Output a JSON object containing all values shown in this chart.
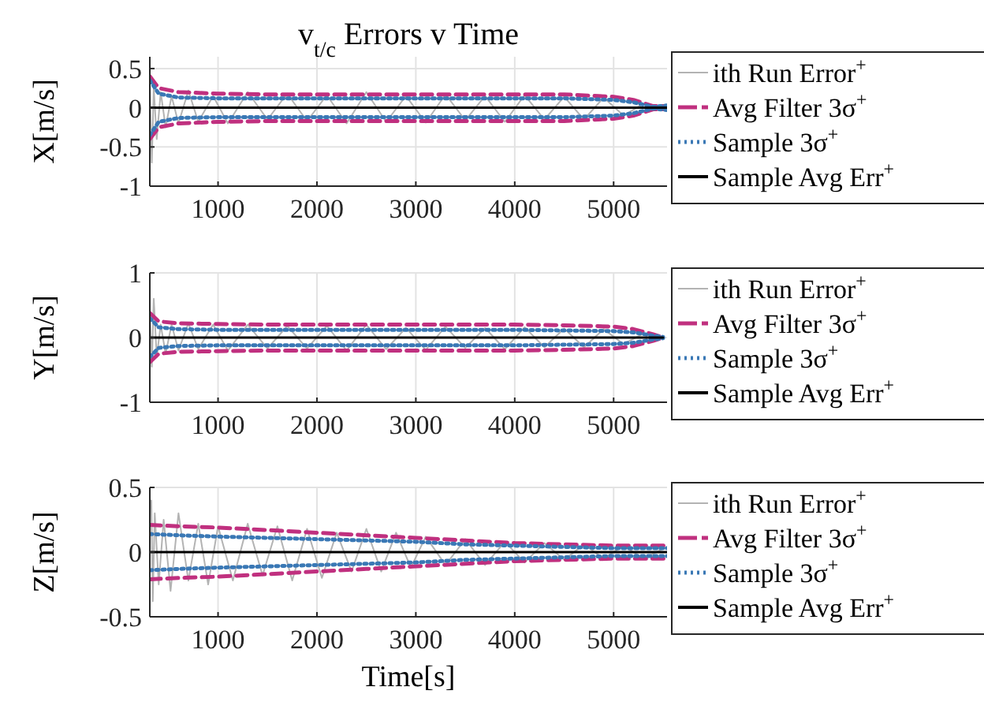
{
  "chart_data": [
    {
      "type": "line",
      "title": "v$_{t/c}$ Errors v Time",
      "ylabel": "X[m/s]",
      "xlim": [
        310,
        5540
      ],
      "ylim": [
        -1,
        0.65
      ],
      "xticks": [
        1000,
        2000,
        3000,
        4000,
        5000
      ],
      "yticks": [
        -1,
        -0.5,
        0,
        0.5
      ],
      "grid": true,
      "legend": "right",
      "x": [
        310,
        400,
        600,
        1000,
        1500,
        2000,
        2500,
        3000,
        3500,
        4000,
        4500,
        5000,
        5200,
        5400,
        5540
      ],
      "series": [
        {
          "name": "ith Run Error$^{+}$",
          "color": "#b3b3b3",
          "line_style": "solid",
          "x": [
            310,
            330,
            350,
            380,
            420,
            470,
            530,
            600,
            700,
            800,
            950,
            1100,
            1300,
            1500,
            1700,
            1900,
            2100,
            2300,
            2500,
            2700,
            2900,
            3100,
            3300,
            3500,
            3700,
            3900,
            4100,
            4300,
            4500,
            4700,
            4900,
            5100,
            5300,
            5450,
            5540
          ],
          "values": [
            0.3,
            -0.7,
            0.25,
            -0.4,
            0.2,
            -0.25,
            0.15,
            -0.2,
            0.22,
            -0.18,
            0.15,
            -0.2,
            0.2,
            -0.15,
            0.18,
            -0.17,
            0.16,
            -0.2,
            0.2,
            -0.18,
            0.15,
            -0.19,
            0.17,
            -0.16,
            0.15,
            -0.18,
            0.16,
            -0.15,
            0.14,
            -0.15,
            0.13,
            -0.1,
            0.05,
            -0.02,
            0.02
          ]
        },
        {
          "name": "Avg Filter 3σ$^{+}$",
          "color": "#c0307f",
          "line_style": "dashed",
          "values": [
            0.4,
            0.25,
            0.2,
            0.18,
            0.17,
            0.17,
            0.17,
            0.17,
            0.17,
            0.17,
            0.17,
            0.14,
            0.1,
            0.02,
            0.02
          ]
        },
        {
          "color": "#c0307f",
          "line_style": "dashed",
          "values": [
            -0.4,
            -0.25,
            -0.2,
            -0.18,
            -0.17,
            -0.17,
            -0.17,
            -0.17,
            -0.17,
            -0.17,
            -0.17,
            -0.14,
            -0.1,
            -0.02,
            -0.02
          ]
        },
        {
          "name": "Sample 3σ$^{+}$",
          "color": "#3a78b5",
          "line_style": "dotted",
          "values": [
            0.35,
            0.18,
            0.13,
            0.12,
            0.12,
            0.12,
            0.12,
            0.12,
            0.12,
            0.12,
            0.12,
            0.1,
            0.07,
            0.01,
            0.03
          ]
        },
        {
          "color": "#3a78b5",
          "line_style": "dotted",
          "values": [
            -0.35,
            -0.18,
            -0.13,
            -0.12,
            -0.12,
            -0.12,
            -0.12,
            -0.12,
            -0.12,
            -0.12,
            -0.12,
            -0.1,
            -0.07,
            -0.01,
            -0.03
          ]
        },
        {
          "name": "Sample Avg Err$^{+}$",
          "color": "#000000",
          "line_style": "solid",
          "values": [
            0,
            0,
            0,
            0,
            0,
            0,
            0,
            0,
            0,
            0,
            0,
            0,
            0,
            0,
            0
          ]
        }
      ]
    },
    {
      "type": "line",
      "ylabel": "Y[m/s]",
      "xlim": [
        310,
        5540
      ],
      "ylim": [
        -1,
        1
      ],
      "xticks": [
        1000,
        2000,
        3000,
        4000,
        5000
      ],
      "yticks": [
        -1,
        0,
        1
      ],
      "grid": true,
      "legend": "right",
      "x": [
        310,
        400,
        600,
        1000,
        1500,
        2000,
        2500,
        3000,
        3500,
        4000,
        4500,
        5000,
        5200,
        5400,
        5500
      ],
      "series": [
        {
          "name": "ith Run Error$^{+}$",
          "color": "#b3b3b3",
          "line_style": "solid",
          "x": [
            310,
            330,
            350,
            380,
            420,
            470,
            530,
            600,
            700,
            800,
            950,
            1100,
            1300,
            1500,
            1700,
            1900,
            2100,
            2300,
            2500,
            2700,
            2900,
            3100,
            3300,
            3500,
            3700,
            3900,
            4100,
            4300,
            4500,
            4700,
            4900,
            5100,
            5300,
            5450,
            5500
          ],
          "values": [
            0.45,
            -0.45,
            0.6,
            -0.3,
            0.2,
            -0.25,
            0.2,
            -0.2,
            0.22,
            -0.18,
            0.2,
            -0.2,
            0.2,
            -0.17,
            0.18,
            -0.17,
            0.18,
            -0.2,
            0.2,
            -0.18,
            0.15,
            -0.19,
            0.17,
            -0.16,
            0.15,
            -0.18,
            0.16,
            -0.15,
            0.14,
            -0.15,
            0.13,
            -0.1,
            0.06,
            -0.02,
            0.01
          ]
        },
        {
          "name": "Avg Filter 3σ$^{+}$",
          "color": "#c0307f",
          "line_style": "dashed",
          "values": [
            0.38,
            0.25,
            0.22,
            0.21,
            0.2,
            0.2,
            0.2,
            0.2,
            0.2,
            0.2,
            0.19,
            0.17,
            0.13,
            0.05,
            0
          ]
        },
        {
          "color": "#c0307f",
          "line_style": "dashed",
          "values": [
            -0.38,
            -0.25,
            -0.22,
            -0.21,
            -0.2,
            -0.2,
            -0.2,
            -0.2,
            -0.2,
            -0.2,
            -0.19,
            -0.17,
            -0.13,
            -0.05,
            0
          ]
        },
        {
          "name": "Sample 3σ$^{+}$",
          "color": "#3a78b5",
          "line_style": "dotted",
          "values": [
            0.3,
            0.16,
            0.13,
            0.12,
            0.12,
            0.12,
            0.12,
            0.12,
            0.12,
            0.12,
            0.11,
            0.1,
            0.08,
            0.03,
            0.01
          ]
        },
        {
          "color": "#3a78b5",
          "line_style": "dotted",
          "values": [
            -0.3,
            -0.16,
            -0.13,
            -0.12,
            -0.12,
            -0.12,
            -0.12,
            -0.12,
            -0.12,
            -0.12,
            -0.11,
            -0.1,
            -0.08,
            -0.03,
            -0.01
          ]
        },
        {
          "name": "Sample Avg Err$^{+}$",
          "color": "#000000",
          "line_style": "solid",
          "values": [
            0,
            0,
            0,
            0,
            0,
            0,
            0,
            0,
            0,
            0,
            0,
            0,
            0,
            0,
            0
          ]
        }
      ]
    },
    {
      "type": "line",
      "ylabel": "Z[m/s]",
      "xlabel": "Time[s]",
      "xlim": [
        310,
        5540
      ],
      "ylim": [
        -0.5,
        0.5
      ],
      "xticks": [
        1000,
        2000,
        3000,
        4000,
        5000
      ],
      "yticks": [
        -0.5,
        0,
        0.5
      ],
      "grid": true,
      "legend": "right",
      "x": [
        310,
        600,
        1000,
        1500,
        2000,
        2500,
        3000,
        3500,
        4000,
        4500,
        5000,
        5300,
        5540
      ],
      "series": [
        {
          "name": "ith Run Error$^{+}$",
          "color": "#b3b3b3",
          "line_style": "solid",
          "x": [
            325,
            340,
            360,
            400,
            450,
            520,
            600,
            700,
            800,
            900,
            1000,
            1150,
            1300,
            1450,
            1600,
            1750,
            1900,
            2050,
            2200,
            2350,
            2500,
            2650,
            2800,
            2950,
            3100,
            3300,
            3500,
            3700,
            3900,
            4100,
            4300,
            4500,
            4700,
            4900,
            5100,
            5300,
            5540
          ],
          "values": [
            0.4,
            -0.38,
            0.3,
            -0.25,
            0.25,
            -0.3,
            0.3,
            -0.22,
            0.22,
            -0.25,
            0.2,
            -0.22,
            0.22,
            -0.18,
            0.2,
            -0.22,
            0.18,
            -0.2,
            0.15,
            -0.15,
            0.18,
            -0.15,
            0.15,
            -0.12,
            0.12,
            -0.1,
            0.1,
            -0.1,
            0.08,
            -0.08,
            0.07,
            -0.06,
            0.06,
            -0.05,
            0.05,
            -0.05,
            0.04
          ]
        },
        {
          "name": "Avg Filter 3σ$^{+}$",
          "color": "#c0307f",
          "line_style": "dashed",
          "values": [
            0.21,
            0.2,
            0.19,
            0.17,
            0.15,
            0.13,
            0.11,
            0.09,
            0.07,
            0.06,
            0.05,
            0.05,
            0.05
          ]
        },
        {
          "color": "#c0307f",
          "line_style": "dashed",
          "values": [
            -0.21,
            -0.2,
            -0.19,
            -0.17,
            -0.15,
            -0.13,
            -0.11,
            -0.09,
            -0.07,
            -0.06,
            -0.05,
            -0.05,
            -0.05
          ]
        },
        {
          "name": "Sample 3σ$^{+}$",
          "color": "#3a78b5",
          "line_style": "dotted",
          "values": [
            0.14,
            0.13,
            0.12,
            0.11,
            0.1,
            0.09,
            0.08,
            0.06,
            0.05,
            0.04,
            0.03,
            0.03,
            0.03
          ]
        },
        {
          "color": "#3a78b5",
          "line_style": "dotted",
          "values": [
            -0.14,
            -0.13,
            -0.12,
            -0.11,
            -0.1,
            -0.09,
            -0.08,
            -0.06,
            -0.05,
            -0.04,
            -0.03,
            -0.03,
            -0.03
          ]
        },
        {
          "name": "Sample Avg Err$^{+}$",
          "color": "#000000",
          "line_style": "solid",
          "values": [
            0,
            0,
            0,
            0,
            0,
            0,
            0,
            0,
            0,
            0,
            0,
            0,
            0
          ]
        }
      ]
    }
  ]
}
